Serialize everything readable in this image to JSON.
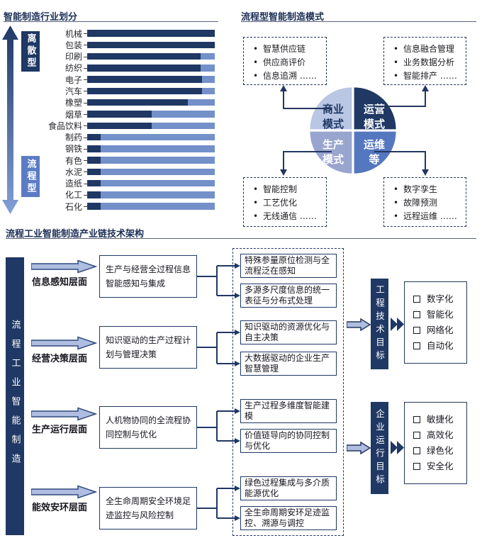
{
  "industry": {
    "title": "智能制造行业划分",
    "axis_top_label": "离散型",
    "axis_bottom_label": "流程型",
    "chart_data": {
      "type": "bar",
      "orientation": "horizontal-stacked",
      "title": "智能制造行业划分",
      "categories": [
        "机械",
        "包装",
        "印刷",
        "纺织",
        "电子",
        "汽车",
        "橡塑",
        "烟草",
        "食品饮料",
        "制药",
        "钢铁",
        "有色",
        "水泥",
        "造纸",
        "化工",
        "石化"
      ],
      "series": [
        {
          "name": "dark_segment_pct",
          "color": "#1f3864",
          "values": [
            100,
            100,
            89,
            89,
            90,
            90,
            79,
            50,
            50,
            10,
            10,
            10,
            10,
            10,
            10,
            10
          ]
        },
        {
          "name": "light_segment_pct",
          "color": "#7390c9",
          "values": [
            0,
            0,
            11,
            11,
            10,
            10,
            21,
            50,
            50,
            90,
            90,
            90,
            90,
            90,
            90,
            90
          ]
        }
      ],
      "xlim": [
        0,
        100
      ],
      "grid": false,
      "legend": false
    }
  },
  "process_mode": {
    "title": "流程型智能制造模式",
    "quadrants": {
      "tl": {
        "line1": "商业",
        "line2": "模式"
      },
      "tr": {
        "line1": "运营",
        "line2": "模式"
      },
      "bl": {
        "line1": "生产",
        "line2": "模式"
      },
      "br": {
        "line1": "运维",
        "line2": "等"
      }
    },
    "callouts": {
      "tl": {
        "items": [
          "智慧供应链",
          "供应商评价",
          "信息追溯 ……"
        ]
      },
      "tr": {
        "items": [
          "信息融合管理",
          "业务数据分析",
          "智能排产 ……"
        ]
      },
      "bl": {
        "items": [
          "智能控制",
          "工艺优化",
          "无线通信 ……"
        ]
      },
      "br": {
        "items": [
          "数字孪生",
          "故障预测",
          "远程运维 ……"
        ]
      }
    }
  },
  "architecture": {
    "title": "流程工业智能制造产业链技术架构",
    "side_label": "流程工业智能制造",
    "layers": [
      {
        "label": "信息感知层面",
        "box": "生产与经营全过程信息智能感知与集成"
      },
      {
        "label": "经营决策层面",
        "box": "知识驱动的生产过程计划与管理决策"
      },
      {
        "label": "生产运行层面",
        "box": "人机物协同的全流程协同控制与优化"
      },
      {
        "label": "能效安环层面",
        "box": "全生命周期安全环境足迹监控与风险控制"
      }
    ],
    "tech_items": [
      "特殊参量原位检测与全流程泛在感知",
      "多源多尺度信息的统一表征与分布式处理",
      "知识驱动的资源优化与自主决策",
      "大数据驱动的企业生产智慧管理",
      "生产过程多维度智能建模",
      "价值链导向的协同控制与优化",
      "绿色过程集成与多介质能源优化",
      "全生命周期安环足迹监控、溯源与调控"
    ],
    "goals": [
      {
        "label": "工程技术目标",
        "items": [
          "数字化",
          "智能化",
          "网络化",
          "自动化"
        ]
      },
      {
        "label": "企业运行目标",
        "items": [
          "敏捷化",
          "高效化",
          "绿色化",
          "安全化"
        ]
      }
    ]
  },
  "colors": {
    "dark_navy": "#1f3864",
    "medium_blue": "#5577bf",
    "light_bar_blue": "#7390c9",
    "pale_quadrant": "#b9c6e4",
    "lavender_quadrant": "#98a6cf",
    "block_arrow_fill": "#aebde0"
  }
}
